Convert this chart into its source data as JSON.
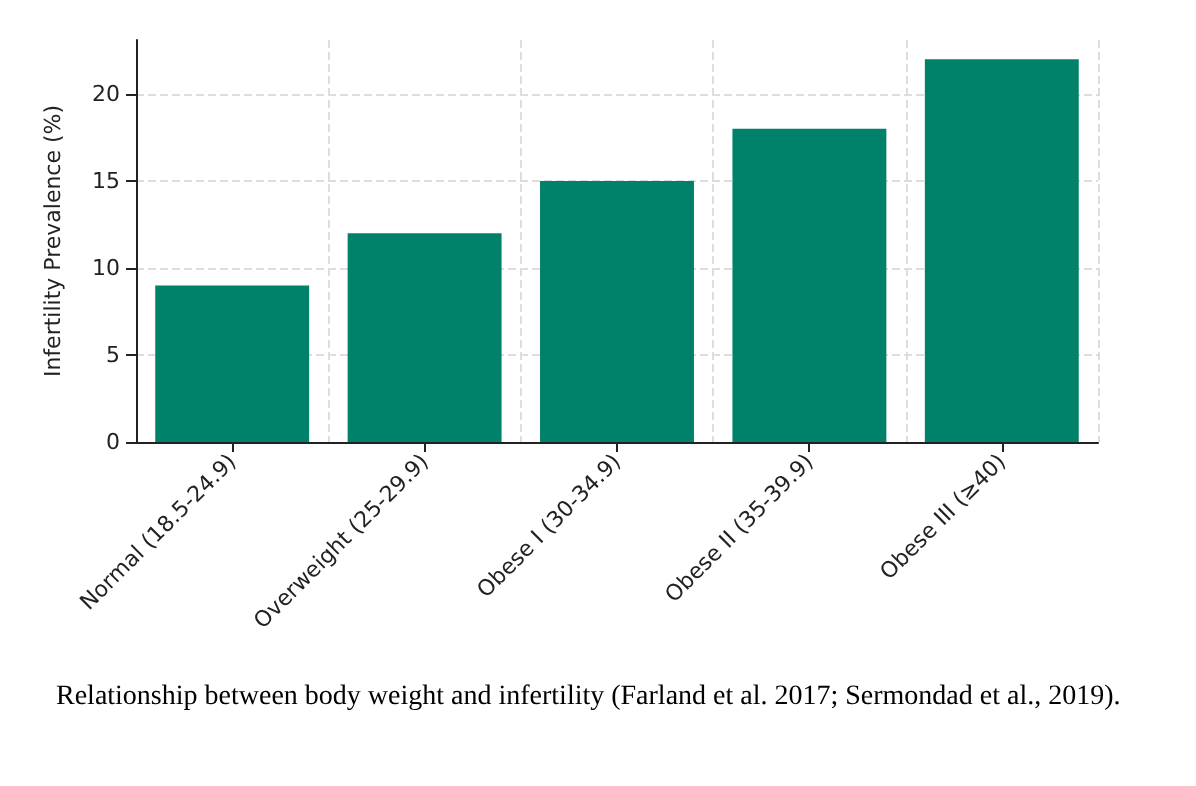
{
  "chart_data": {
    "type": "bar",
    "categories": [
      "Normal (18.5-24.9)",
      "Overweight (25-29.9)",
      "Obese I (30-34.9)",
      "Obese II (35-39.9)",
      "Obese III (≥40)"
    ],
    "values": [
      9,
      12,
      15,
      18,
      22
    ],
    "color": "#00816a",
    "ylabel": "Infertility Prevalence (%)",
    "ylim": [
      0,
      23.1
    ],
    "yticks": [
      0,
      5,
      10,
      15,
      20
    ],
    "grid": true,
    "annotations": [
      "Relationship between body weight and infertility (Farland et al. 2017; Sermondad et al., 2019)."
    ]
  }
}
